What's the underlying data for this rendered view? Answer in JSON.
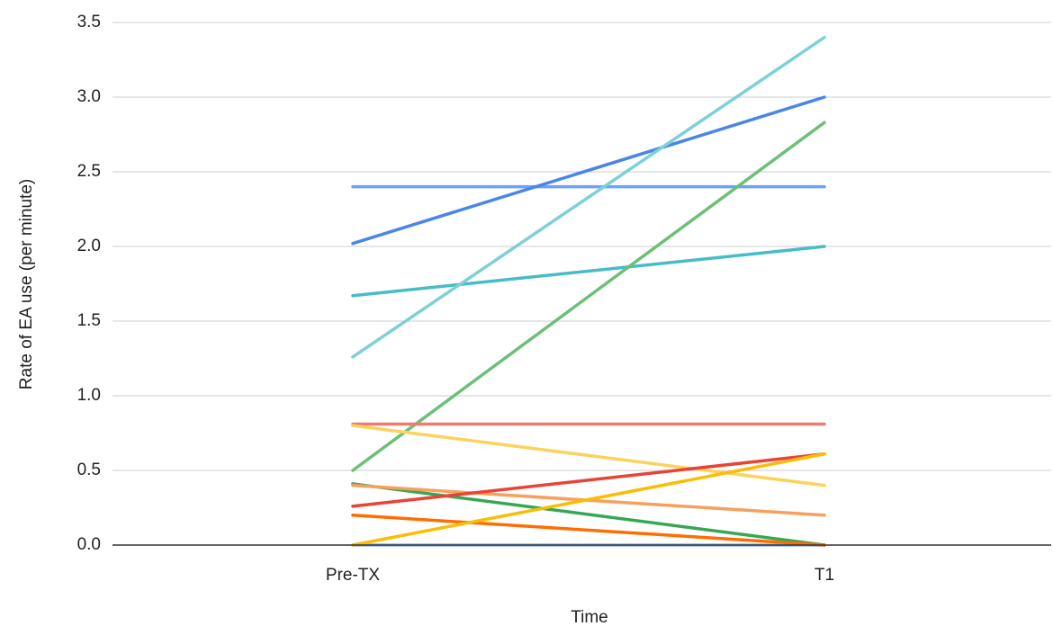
{
  "chart_data": {
    "type": "line",
    "title": "",
    "xlabel": "Time",
    "ylabel": "Rate of EA use (per minute)",
    "categories": [
      "Pre-TX",
      "T1"
    ],
    "ylim": [
      0,
      3.5
    ],
    "yticks": [
      "0.0",
      "0.5",
      "1.0",
      "1.5",
      "2.0",
      "2.5",
      "3.0",
      "3.5"
    ],
    "grid": true,
    "legend": "none",
    "series": [
      {
        "values": [
          0.0,
          0.0
        ],
        "color": "#8ab4f8"
      },
      {
        "values": [
          2.4,
          2.4
        ],
        "color": "#6fa1f2"
      },
      {
        "values": [
          2.02,
          3.0
        ],
        "color": "#4a86e8"
      },
      {
        "values": [
          1.67,
          2.0
        ],
        "color": "#46bdc6"
      },
      {
        "values": [
          1.26,
          3.4
        ],
        "color": "#7ed0d6"
      },
      {
        "values": [
          0.5,
          2.83
        ],
        "color": "#6dbf78"
      },
      {
        "values": [
          0.81,
          0.81
        ],
        "color": "#ef7b6f"
      },
      {
        "values": [
          0.8,
          0.4
        ],
        "color": "#fbd25a"
      },
      {
        "values": [
          0.41,
          0.0
        ],
        "color": "#34a853"
      },
      {
        "values": [
          0.4,
          0.2
        ],
        "color": "#f6a05c"
      },
      {
        "values": [
          0.26,
          0.61
        ],
        "color": "#ea4335"
      },
      {
        "values": [
          0.2,
          0.0
        ],
        "color": "#ff6d01"
      },
      {
        "values": [
          0.0,
          0.61
        ],
        "color": "#fbbc04"
      }
    ]
  }
}
